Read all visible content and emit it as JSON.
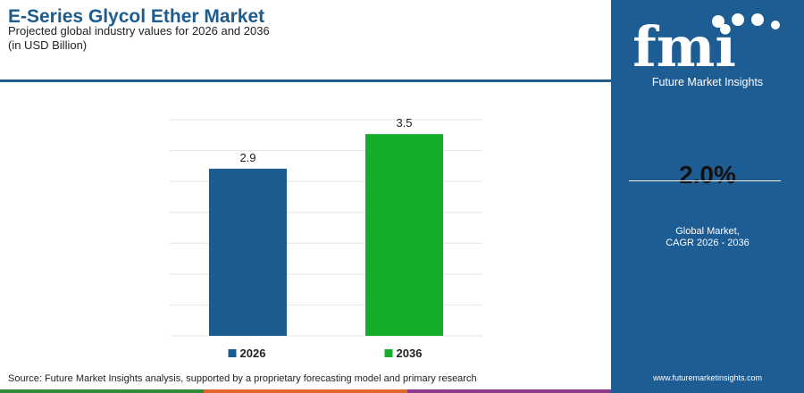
{
  "title": "E-Series Glycol Ether Market",
  "subtitle_line1": "Projected global industry values for 2026 and 2036",
  "subtitle_line2": "(in USD Billion)",
  "source": "Source: Future Market Insights analysis, supported by a proprietary forecasting model and primary research",
  "brand": {
    "logo_text": "fmi",
    "name": "Future Market Insights",
    "website": "www.futuremarketinsights.com",
    "panel_color": "#1e5c94"
  },
  "cagr": {
    "value": "2.0%",
    "caption_line1": "Global Market,",
    "caption_line2": "CAGR 2026 - 2036"
  },
  "footer_colors": [
    "#2e8b3a",
    "#e2672a",
    "#8e3a8c"
  ],
  "chart_data": {
    "type": "bar",
    "categories": [
      "2026",
      "2036"
    ],
    "values": [
      2.9,
      3.5
    ],
    "data_labels": [
      "2.9",
      "3.5"
    ],
    "colors": [
      "#1d5c8f",
      "#16ad2b"
    ],
    "ylim": [
      0,
      3.75
    ],
    "grid": true,
    "legend_position": "bottom"
  }
}
